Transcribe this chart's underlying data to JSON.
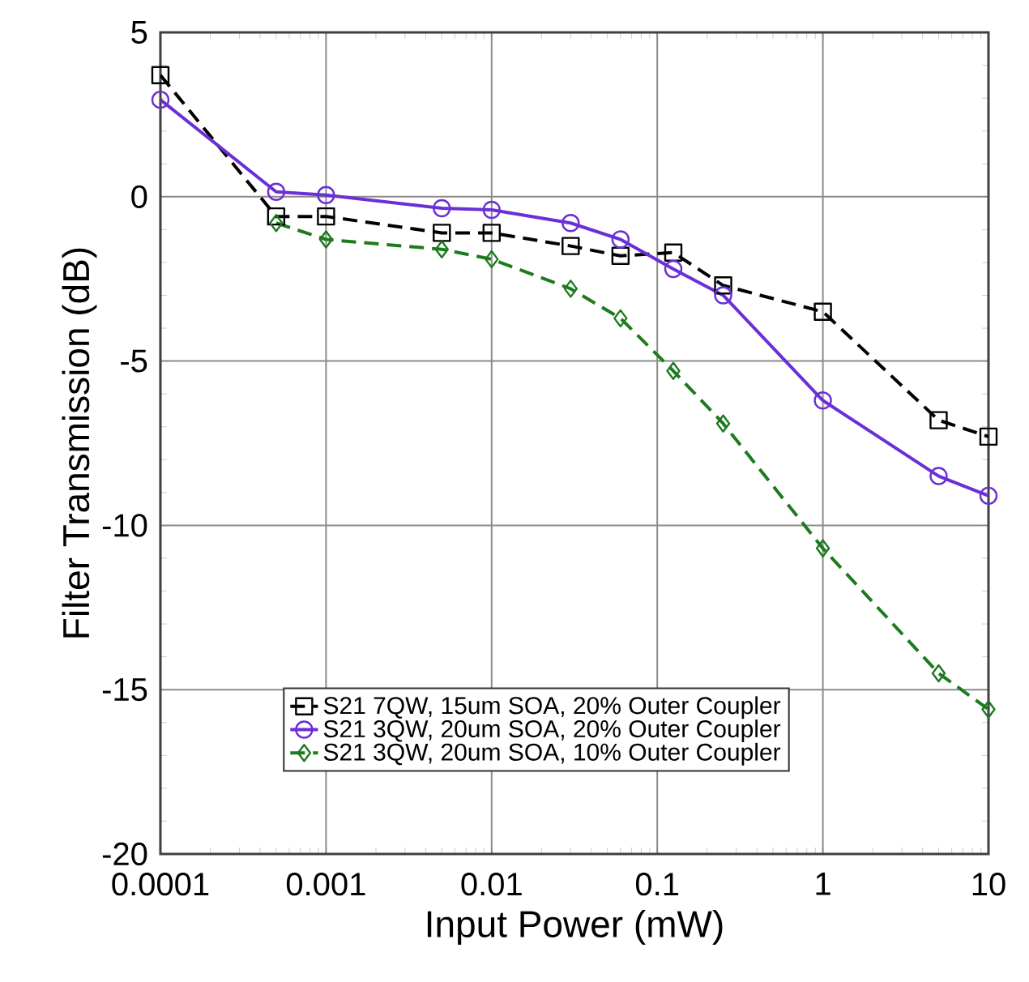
{
  "chart_data": {
    "type": "line",
    "xlabel": "Input Power (mW)",
    "ylabel": "Filter Transmission (dB)",
    "x": [
      0.0001,
      0.0005,
      0.001,
      0.005,
      0.01,
      0.03,
      0.06,
      0.125,
      0.25,
      1,
      5,
      10
    ],
    "series": [
      {
        "name": "S21 7QW, 15um SOA, 20% Outer Coupler",
        "color": "#000000",
        "marker": "square",
        "line_style": "dashed",
        "values": [
          3.7,
          -0.6,
          -0.6,
          -1.1,
          -1.1,
          -1.5,
          -1.8,
          -1.7,
          -2.7,
          -3.5,
          -6.8,
          -7.3
        ]
      },
      {
        "name": "S21 3QW, 20um SOA, 20% Outer Coupler",
        "color": "#6a2fd6",
        "marker": "circle",
        "line_style": "solid",
        "values": [
          2.95,
          0.15,
          0.05,
          -0.35,
          -0.4,
          -0.8,
          -1.3,
          -2.2,
          -3.0,
          -6.2,
          -8.5,
          -9.1
        ]
      },
      {
        "name": "S21 3QW, 20um SOA, 10% Outer Coupler",
        "color": "#1e7a1e",
        "marker": "diamond",
        "line_style": "dashed",
        "values": [
          null,
          -0.8,
          -1.3,
          -1.6,
          -1.9,
          -2.8,
          -3.7,
          -5.3,
          -6.9,
          -10.7,
          -14.5,
          -15.6
        ]
      }
    ],
    "log": "x",
    "xlim": [
      0.0001,
      10
    ],
    "xticks": [
      0.0001,
      0.001,
      0.01,
      0.1,
      1,
      10
    ],
    "ylim": [
      -20,
      5
    ],
    "yticks": [
      -20,
      -15,
      -10,
      -5,
      0,
      5
    ],
    "grid": true,
    "legend": "bottom right"
  }
}
